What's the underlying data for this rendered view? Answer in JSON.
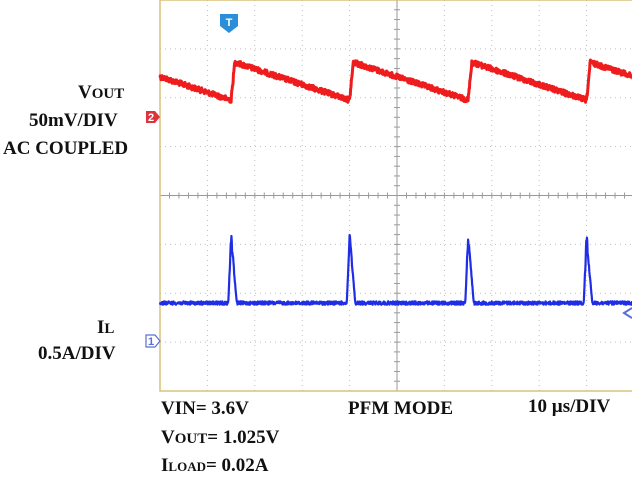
{
  "chart_data": {
    "type": "line",
    "title": "",
    "xlabel": "",
    "ylabel": "",
    "grid": true,
    "horizontal_divisions": 10,
    "vertical_divisions": 8,
    "series": [
      {
        "name": "VOUT",
        "channel": "2",
        "scale": "50mV/DIV",
        "coupling": "AC COUPLED",
        "color": "#ee1c1c",
        "waveform": "sawtooth",
        "ramp_low_div": 2.05,
        "ramp_high_div": 1.25,
        "period_div": 2.5,
        "rise_times_div": [
          1.5,
          4.0,
          6.5,
          9.0
        ]
      },
      {
        "name": "IL",
        "channel": "1",
        "scale": "0.5A/DIV",
        "color": "#1f2ee6",
        "waveform": "pulse",
        "baseline_div": 6.2,
        "peak_div": 4.85,
        "pulse_times_div": [
          1.5,
          4.0,
          6.5,
          9.0
        ]
      }
    ]
  },
  "labels": {
    "vout_name": "V",
    "vout_sub": "OUT",
    "vout_scale": "50mV/DIV",
    "vout_coupling": "AC COUPLED",
    "il_name": "I",
    "il_sub": "L",
    "il_scale": "0.5A/DIV",
    "vin": "VIN= 3.6V",
    "mode": "PFM MODE",
    "timebase": "10 µs/DIV",
    "vout_cond_name": "V",
    "vout_cond_sub": "OUT",
    "vout_cond_val": "= 1.025V",
    "iload_name": "I",
    "iload_sub": "LOAD",
    "iload_val": "= 0.02A"
  },
  "markers": {
    "trigger": "T",
    "ch2": "2",
    "ch1": "1"
  },
  "colors": {
    "grid": "#bdbdbd",
    "frame": "#d9c27a",
    "ch2_marker": "#e0323a",
    "ch1_marker": "#5a6fd6",
    "trigger_marker": "#2a8fd8"
  }
}
